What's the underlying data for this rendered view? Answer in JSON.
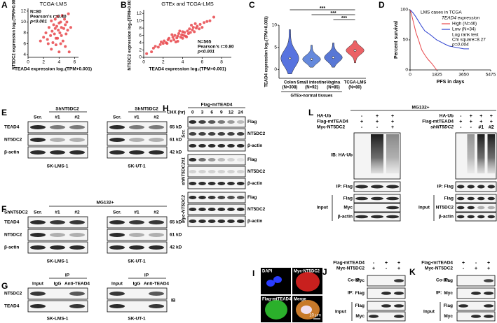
{
  "chart_data": [
    {
      "type": "scatter",
      "letter": "A",
      "title": "TCGA-LMS",
      "annotations": [
        "N=80",
        "Pearson's r=0.40",
        "p<0.001"
      ],
      "x_label": "TEAD4 expression log₂(TPM+0.001)",
      "y_label": "NT5DC2 expression log₂(TPM+0.001)",
      "x": [
        1.6,
        2.0,
        2.3,
        2.5,
        2.7,
        2.9,
        3.0,
        3.1,
        3.2,
        3.3,
        3.4,
        3.5,
        3.5,
        3.6,
        3.7,
        3.8,
        3.8,
        3.9,
        4.0,
        4.0,
        4.1,
        4.2,
        4.3,
        4.3,
        4.4,
        4.5,
        4.6,
        4.7,
        4.8,
        4.9,
        5.0,
        5.1,
        5.2,
        5.3,
        5.5,
        3.0,
        3.6,
        4.2,
        4.8,
        2.6
      ],
      "values": [
        6.5,
        7.2,
        8.0,
        6.8,
        9.0,
        7.5,
        10.2,
        8.3,
        6.2,
        9.5,
        7.8,
        8.8,
        10.5,
        5.8,
        9.2,
        7.0,
        11.0,
        8.5,
        9.8,
        4.5,
        8.0,
        10.0,
        7.5,
        9.0,
        11.2,
        6.5,
        8.8,
        10.5,
        9.5,
        7.8,
        10.0,
        8.5,
        11.5,
        4.5,
        9.0,
        5.0,
        7.0,
        6.0,
        5.5,
        6.0
      ],
      "color": "#e8474b",
      "xlim": [
        0,
        6.5
      ],
      "ylim": [
        3.5,
        12.5
      ],
      "xticks": [
        0,
        2,
        4,
        6
      ],
      "yticks": [
        4,
        6,
        8,
        10,
        12
      ]
    },
    {
      "type": "scatter",
      "letter": "B",
      "title": "GTEx and TCGA-LMS",
      "annotations": [
        "N=565",
        "Pearson's r=0.80",
        "p<0.001"
      ],
      "x_label": "TEAD4 expression log₂(TPM+0.001)",
      "y_label": "NT5DC2 expression log₂(TPM+0.001)",
      "x": [
        0.3,
        0.8,
        1.0,
        1.2,
        1.5,
        1.7,
        2.0,
        2.1,
        2.3,
        2.5,
        2.6,
        2.8,
        3.0,
        3.1,
        3.2,
        3.4,
        3.5,
        3.6,
        3.8,
        3.9,
        4.0,
        4.1,
        4.2,
        4.3,
        4.5,
        4.6,
        4.7,
        4.8,
        5.0,
        5.1,
        5.2,
        5.4,
        5.5,
        5.7,
        5.8,
        6.0,
        6.2,
        6.5,
        6.8,
        7.2,
        1.8,
        2.4,
        3.3,
        3.7,
        4.4,
        4.9,
        5.3,
        2.9,
        3.5,
        4.0
      ],
      "values": [
        1.0,
        1.5,
        2.5,
        3.0,
        2.8,
        3.5,
        3.8,
        4.5,
        4.0,
        4.8,
        5.2,
        4.5,
        5.5,
        4.8,
        6.0,
        5.3,
        5.8,
        6.5,
        5.5,
        6.2,
        7.0,
        6.0,
        6.8,
        5.8,
        7.2,
        6.5,
        7.8,
        6.8,
        7.5,
        8.2,
        7.0,
        8.0,
        8.5,
        7.8,
        9.0,
        8.2,
        9.5,
        9.8,
        10.0,
        11.0,
        4.2,
        3.8,
        4.2,
        7.2,
        5.6,
        8.8,
        9.2,
        6.2,
        4.4,
        5.2
      ],
      "color": "#e8474b",
      "xlim": [
        0,
        9
      ],
      "ylim": [
        0,
        13
      ],
      "xticks": [
        0,
        2,
        4,
        6,
        8
      ],
      "yticks": [
        0,
        2,
        4,
        6,
        8,
        10,
        12
      ]
    },
    {
      "type": "violin",
      "letter": "C",
      "y_label": "TEAD4 expression log₂(TPM+0.001)",
      "categories": [
        "Colon",
        "Small intestine",
        "Vagina",
        "TCGA-LMS"
      ],
      "category_counts": [
        "(N=308)",
        "(N=92)",
        "(N=85)",
        "(N=80)"
      ],
      "group_label": "GTEx-normal tissues",
      "values": [
        2.5,
        2.3,
        2.7,
        4.3
      ],
      "mins": [
        -1,
        0.5,
        0.5,
        1.5
      ],
      "maxs": [
        9,
        5.5,
        6,
        6.5
      ],
      "colors": [
        "#3a5bd9",
        "#4a74d6",
        "#3b5fce",
        "#e8474b"
      ],
      "significance": [
        "***",
        "***",
        "***"
      ],
      "ylim": [
        -2,
        10
      ],
      "yticks": [
        0,
        5,
        10
      ]
    },
    {
      "type": "line",
      "letter": "D",
      "title": "LMS cases in TCGA",
      "legend_title": "TEAD4 expression",
      "series": [
        {
          "name": "High (N=46)",
          "color": "#e8474b",
          "x": [
            0,
            100,
            200,
            300,
            400,
            500,
            600,
            700,
            800,
            1000,
            1200,
            1500,
            1800
          ],
          "values": [
            100,
            92,
            82,
            72,
            62,
            55,
            48,
            40,
            33,
            25,
            18,
            10,
            0
          ]
        },
        {
          "name": "Low (N=34)",
          "color": "#2b3fd0",
          "x": [
            0,
            200,
            400,
            600,
            800,
            1000,
            1400,
            1800,
            2200,
            2600,
            3000,
            3650,
            4000
          ],
          "values": [
            100,
            95,
            88,
            80,
            72,
            65,
            58,
            50,
            45,
            40,
            38,
            35,
            35
          ]
        }
      ],
      "annotations": [
        "Log rank test",
        "Chi square=8.27",
        "p=0.004"
      ],
      "x_label": "PFS in days",
      "y_label": "Percent survival",
      "xlim": [
        0,
        5475
      ],
      "ylim": [
        0,
        100
      ],
      "xticks": [
        0,
        1825,
        3650,
        5475
      ],
      "yticks": [
        0,
        50,
        100
      ]
    }
  ],
  "blots": {
    "E": {
      "letter": "E",
      "groups": [
        {
          "header": "ShNT5DC2",
          "lanes": [
            "Scr.",
            "#1",
            "#2"
          ],
          "cell_line": "SK-LMS-1"
        },
        {
          "header": "ShNT5DC2",
          "lanes": [
            "Scr.",
            "#1",
            "#2"
          ],
          "cell_line": "SK-UT-1"
        }
      ],
      "rows": [
        "TEAD4",
        "NT5DC2",
        "β-actin"
      ],
      "sizes": [
        "65 kD",
        "61 kD",
        "42 kD"
      ]
    },
    "F": {
      "letter": "F",
      "treatment": "MG132+",
      "lane_header": "ShNT5DC2",
      "groups": [
        {
          "lanes": [
            "Scr.",
            "#1",
            "#2"
          ],
          "cell_line": "SK-LMS-1"
        },
        {
          "lanes": [
            "Scr.",
            "#1",
            "#2"
          ],
          "cell_line": "SK-UT-1"
        }
      ],
      "rows": [
        "TEAD4",
        "NT5DC2",
        "β-actin"
      ],
      "sizes": [
        "65 kD",
        "61 kD",
        "42 kD"
      ]
    },
    "G": {
      "letter": "G",
      "groups": [
        {
          "header": "IP",
          "lanes": [
            "Input",
            "IgG",
            "Anti-TEAD4"
          ],
          "cell_line": "SK-LMS-1"
        },
        {
          "header": "IP",
          "lanes": [
            "Input",
            "IgG",
            "Anti-TEAD4"
          ],
          "cell_line": "SK-UT-1"
        }
      ],
      "rows": [
        "NT5DC2",
        "TEAD4"
      ],
      "side_label": "IB"
    },
    "H": {
      "letter": "H",
      "title": "Flag-mtTEAD4",
      "lane_header": "CHX (hr)",
      "lanes": [
        "0",
        "3",
        "6",
        "9",
        "12",
        "24"
      ],
      "groups": [
        {
          "name": "Scr.",
          "rows": [
            "Flag",
            "NT5DC2",
            "β-actin"
          ]
        },
        {
          "name": "shNT5DC2#1",
          "rows": [
            "Flag",
            "NT5DC2",
            "β-actin"
          ]
        },
        {
          "name": "Myc-NT5DC2",
          "rows": [
            "Flag",
            "NT5DC2",
            "β-actin"
          ]
        }
      ]
    },
    "I": {
      "letter": "I",
      "images": [
        "DAPI",
        "Myc-NT5DC2",
        "Flag-mtTEAD4",
        "Merge"
      ],
      "scale_bar": "10 μm"
    },
    "J": {
      "letter": "J",
      "conditions": [
        {
          "name": "Flag-mtTEAD4",
          "signs": [
            "-",
            "+",
            "+"
          ]
        },
        {
          "name": "Myc-NT5DC2",
          "signs": [
            "+",
            "-",
            "+"
          ]
        }
      ],
      "sections": [
        {
          "name": "Co-IP:",
          "rows": [
            "Myc"
          ]
        },
        {
          "name": "IP:",
          "rows": [
            "Flag"
          ]
        },
        {
          "name": "Input",
          "rows": [
            "Flag",
            "Myc"
          ]
        }
      ]
    },
    "K": {
      "letter": "K",
      "conditions": [
        {
          "name": "Flag-mtTEAD4",
          "signs": [
            "+",
            "-",
            "+"
          ]
        },
        {
          "name": "Myc-NT5DC2",
          "signs": [
            "-",
            "+",
            "+"
          ]
        }
      ],
      "sections": [
        {
          "name": "Co-IP:",
          "rows": [
            "Flag"
          ]
        },
        {
          "name": "IP:",
          "rows": [
            "Myc"
          ]
        },
        {
          "name": "Input",
          "rows": [
            "Flag",
            "Myc"
          ]
        }
      ]
    },
    "L": {
      "letter": "L",
      "treatment": "MG132+",
      "panels": [
        {
          "conditions": [
            {
              "name": "HA-Ub",
              "signs": [
                "-",
                "+",
                "+"
              ]
            },
            {
              "name": "Flag-mtTEAD4",
              "signs": [
                "+",
                "+",
                "+"
              ]
            },
            {
              "name": "Myc-NT5DC2",
              "signs": [
                "-",
                "-",
                "+"
              ]
            }
          ],
          "ib": "IB: HA-Ub",
          "ip": "IP: Flag",
          "input": "Input",
          "input_rows": [
            "Flag",
            "Myc",
            "β-actin"
          ]
        },
        {
          "conditions": [
            {
              "name": "HA-Ub",
              "signs": [
                "-",
                "+",
                "+",
                "+"
              ]
            },
            {
              "name": "Flag-mtTEAD4",
              "signs": [
                "+",
                "+",
                "+",
                "+"
              ]
            },
            {
              "name": "shNT5DC2",
              "signs": [
                "-",
                "-",
                "#1",
                "#2"
              ]
            }
          ],
          "ip": "IP: Flag",
          "input": "Input",
          "input_rows": [
            "Flag",
            "NT5DC2",
            "β-actin"
          ]
        }
      ]
    }
  }
}
